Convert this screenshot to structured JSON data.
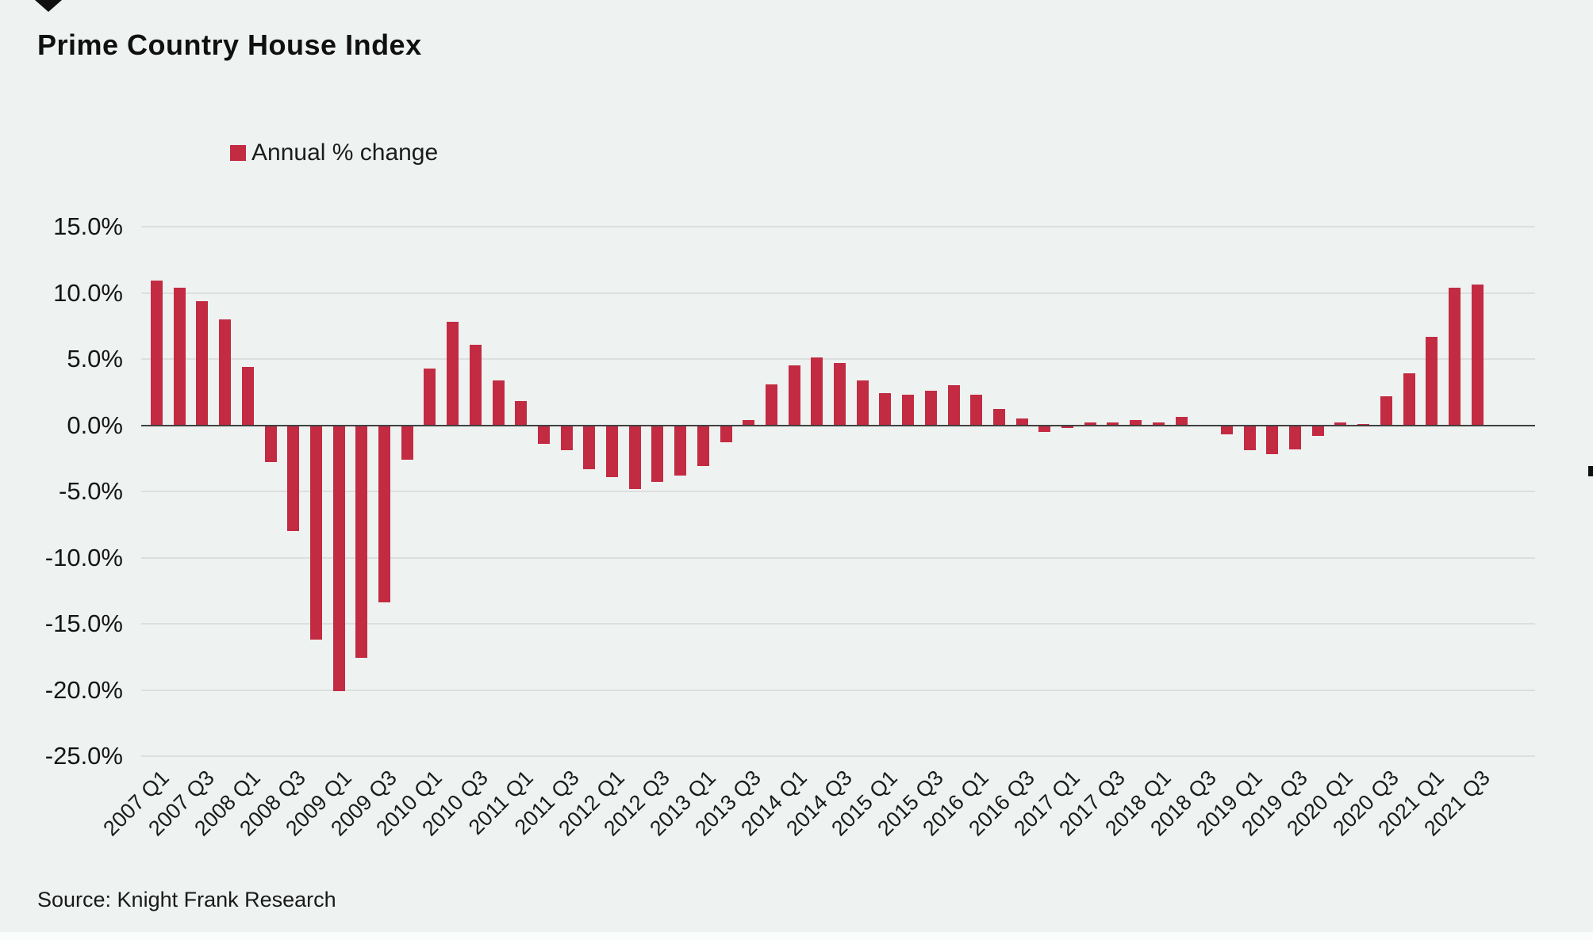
{
  "page": {
    "background_color": "#eef2f1"
  },
  "header": {
    "title": "Prime Country House Index"
  },
  "legend": {
    "label": "Annual % change",
    "swatch_color": "#c32b42"
  },
  "chart_data": {
    "type": "bar",
    "title": "Prime Country House Index",
    "series_name": "Annual % change",
    "unit": "%",
    "bar_color": "#c32b42",
    "grid": "horizontal",
    "legend_position": "top-left",
    "ylim": [
      -25,
      15
    ],
    "y_ticks": [
      15,
      10,
      5,
      0,
      -5,
      -10,
      -15,
      -20,
      -25
    ],
    "y_tick_labels": [
      "15.0%",
      "10.0%",
      "5.0%",
      "0.0%",
      "-5.0%",
      "-10.0%",
      "-15.0%",
      "-20.0%",
      "-25.0%"
    ],
    "x": [
      "2007 Q1",
      "2007 Q2",
      "2007 Q3",
      "2007 Q4",
      "2008 Q1",
      "2008 Q2",
      "2008 Q3",
      "2008 Q4",
      "2009 Q1",
      "2009 Q2",
      "2009 Q3",
      "2009 Q4",
      "2010 Q1",
      "2010 Q2",
      "2010 Q3",
      "2010 Q4",
      "2011 Q1",
      "2011 Q2",
      "2011 Q3",
      "2011 Q4",
      "2012 Q1",
      "2012 Q2",
      "2012 Q3",
      "2012 Q4",
      "2013 Q1",
      "2013 Q2",
      "2013 Q3",
      "2013 Q4",
      "2014 Q1",
      "2014 Q2",
      "2014 Q3",
      "2014 Q4",
      "2015 Q1",
      "2015 Q2",
      "2015 Q3",
      "2015 Q4",
      "2016 Q1",
      "2016 Q2",
      "2016 Q3",
      "2016 Q4",
      "2017 Q1",
      "2017 Q2",
      "2017 Q3",
      "2017 Q4",
      "2018 Q1",
      "2018 Q2",
      "2018 Q3",
      "2018 Q4",
      "2019 Q1",
      "2019 Q2",
      "2019 Q3",
      "2019 Q4",
      "2020 Q1",
      "2020 Q2",
      "2020 Q3",
      "2020 Q4",
      "2021 Q1",
      "2021 Q2",
      "2021 Q3"
    ],
    "values": [
      10.9,
      10.4,
      9.4,
      8.0,
      4.4,
      -2.8,
      -8.0,
      -16.2,
      -20.1,
      -17.6,
      -13.4,
      -2.6,
      4.3,
      7.8,
      6.1,
      3.4,
      1.8,
      -1.4,
      -1.9,
      -3.3,
      -3.9,
      -4.8,
      -4.3,
      -3.8,
      -3.1,
      -1.3,
      0.4,
      3.1,
      4.5,
      5.1,
      4.7,
      3.4,
      2.4,
      2.3,
      2.6,
      3.0,
      2.3,
      1.2,
      0.5,
      -0.5,
      -0.2,
      0.2,
      0.2,
      0.4,
      0.2,
      0.6,
      -0.1,
      -0.7,
      -1.9,
      -2.2,
      -1.8,
      -0.8,
      0.2,
      0.1,
      2.2,
      3.9,
      6.7,
      10.4,
      10.6
    ],
    "x_tick_labels": [
      "2007 Q1",
      "2007 Q3",
      "2008 Q1",
      "2008 Q3",
      "2009 Q1",
      "2009 Q3",
      "2010 Q1",
      "2010 Q3",
      "2011 Q1",
      "2011 Q3",
      "2012 Q1",
      "2012 Q3",
      "2013 Q1",
      "2013 Q3",
      "2014 Q1",
      "2014 Q3",
      "2015 Q1",
      "2015 Q3",
      "2016 Q1",
      "2016 Q3",
      "2017 Q1",
      "2017 Q3",
      "2018 Q1",
      "2018 Q3",
      "2019 Q1",
      "2019 Q3",
      "2020 Q1",
      "2020 Q3",
      "2021 Q1",
      "2021 Q3"
    ]
  },
  "footer": {
    "source": "Source: Knight Frank Research"
  }
}
